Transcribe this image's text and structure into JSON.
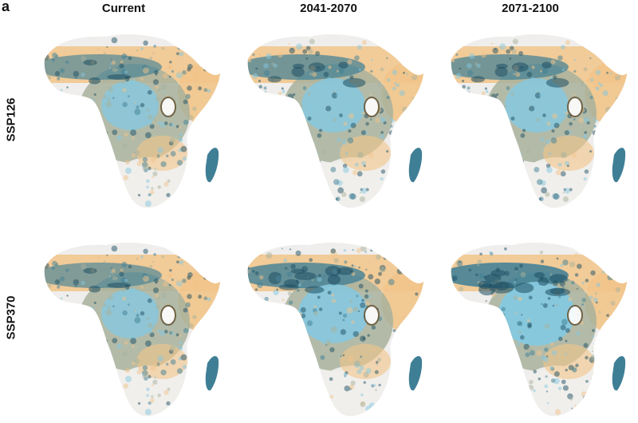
{
  "figure": {
    "panel_letter": "a",
    "columns": [
      "Current",
      "2041-2070",
      "2071-2100"
    ],
    "rows": [
      "SSP126",
      "SSP370"
    ]
  },
  "legend_colors": {
    "desert": "#efeeec",
    "dry": "#f1c48a",
    "mid": "#a8b29c",
    "wet": "#86c8df",
    "very_wet": "#3f7f96",
    "darkest": "#1e4f63"
  },
  "maps": [
    {
      "row": "SSP126",
      "column": "Current",
      "intensity": 1
    },
    {
      "row": "SSP126",
      "column": "2041-2070",
      "intensity": 2
    },
    {
      "row": "SSP126",
      "column": "2071-2100",
      "intensity": 2
    },
    {
      "row": "SSP370",
      "column": "Current",
      "intensity": 1
    },
    {
      "row": "SSP370",
      "column": "2041-2070",
      "intensity": 3
    },
    {
      "row": "SSP370",
      "column": "2071-2100",
      "intensity": 4
    }
  ]
}
